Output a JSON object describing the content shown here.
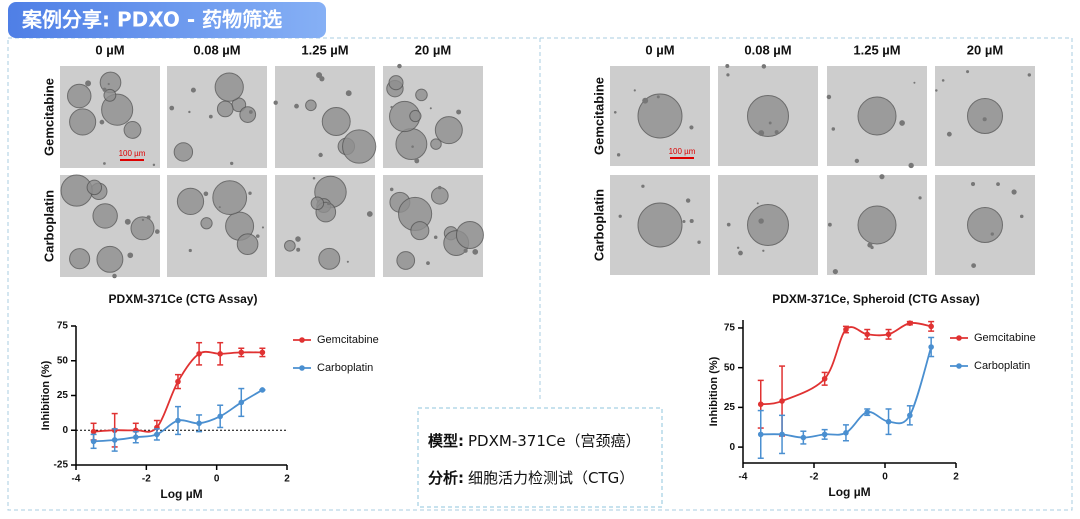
{
  "header": {
    "title": "案例分享: PDXO - 药物筛选"
  },
  "panels": [
    {
      "columns": [
        "0 µM",
        "0.08 µM",
        "1.25 µM",
        "20 µM"
      ],
      "rows": [
        "Gemcitabine",
        "Carboplatin"
      ],
      "scale_bar": "100 µm"
    },
    {
      "columns": [
        "0 µM",
        "0.08 µM",
        "1.25 µM",
        "20 µM"
      ],
      "rows": [
        "Gemcitabine",
        "Carboplatin"
      ],
      "scale_bar": "100 µm"
    }
  ],
  "chart_data": [
    {
      "type": "line",
      "title": "PDXM-371Ce (CTG Assay)",
      "x_label": "Log µM",
      "y_label": "Inhibition (%)",
      "xlim": [
        -4,
        2
      ],
      "xticks": [
        -4,
        -2,
        0,
        2
      ],
      "ylim": [
        -25,
        75
      ],
      "yticks": [
        -25,
        0,
        25,
        50,
        75
      ],
      "zero_line": true,
      "series": [
        {
          "name": "Gemcitabine",
          "color": "#e03232",
          "x": [
            -3.5,
            -2.9,
            -2.3,
            -1.7,
            -1.1,
            -0.5,
            0.1,
            0.7,
            1.3
          ],
          "values": [
            -1,
            0,
            0,
            2,
            35,
            55,
            55,
            56,
            56
          ],
          "errors": [
            6,
            12,
            5,
            5,
            5,
            8,
            8,
            3,
            3
          ]
        },
        {
          "name": "Carboplatin",
          "color": "#4a8fd0",
          "x": [
            -3.5,
            -2.9,
            -2.3,
            -1.7,
            -1.1,
            -0.5,
            0.1,
            0.7,
            1.3
          ],
          "values": [
            -8,
            -7,
            -5,
            -3,
            7,
            5,
            10,
            20,
            29
          ],
          "errors": [
            5,
            8,
            4,
            4,
            10,
            6,
            8,
            10,
            0
          ]
        }
      ]
    },
    {
      "type": "line",
      "title": "PDXM-371Ce, Spheroid (CTG Assay)",
      "x_label": "Log µM",
      "y_label": "Inhibition (%)",
      "xlim": [
        -4,
        2
      ],
      "xticks": [
        -4,
        -2,
        0,
        2
      ],
      "ylim": [
        -10,
        80
      ],
      "yticks": [
        0,
        25,
        50,
        75
      ],
      "zero_line": false,
      "series": [
        {
          "name": "Gemcitabine",
          "color": "#e03232",
          "x": [
            -3.5,
            -2.9,
            -1.7,
            -1.1,
            -0.5,
            0.1,
            0.7,
            1.3
          ],
          "values": [
            27,
            29,
            43,
            74,
            71,
            71,
            78,
            76
          ],
          "errors": [
            15,
            22,
            4,
            2,
            3,
            3,
            1,
            3
          ]
        },
        {
          "name": "Carboplatin",
          "color": "#4a8fd0",
          "x": [
            -3.5,
            -2.9,
            -2.3,
            -1.7,
            -1.1,
            -0.5,
            0.1,
            0.7,
            1.3
          ],
          "values": [
            8,
            8,
            6,
            8,
            9,
            22,
            16,
            20,
            63
          ],
          "errors": [
            15,
            12,
            4,
            3,
            5,
            2,
            8,
            6,
            6
          ]
        }
      ]
    }
  ],
  "info": {
    "model_label": "模型:",
    "model_value": "PDXM-371Ce（宫颈癌）",
    "analysis_label": "分析:",
    "analysis_value": "细胞活力检测试（CTG）"
  }
}
